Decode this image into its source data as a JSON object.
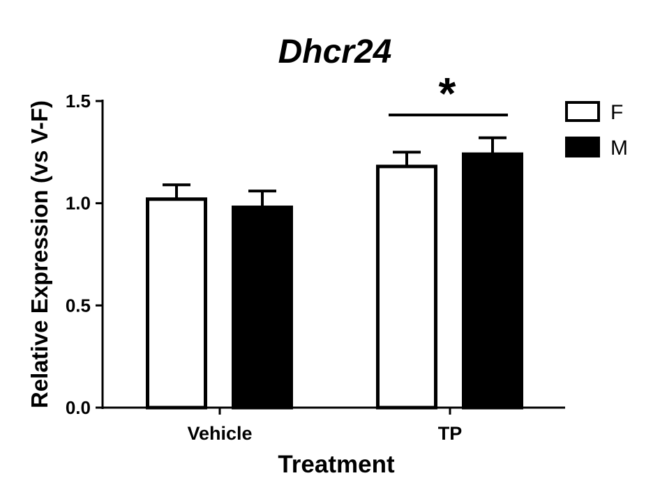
{
  "chart_data": {
    "type": "bar",
    "title": "Dhcr24",
    "xlabel": "Treatment",
    "ylabel": "Relative  Expression  (vs V-F)",
    "categories": [
      "Vehicle",
      "TP"
    ],
    "series": [
      {
        "name": "F",
        "values": [
          1.02,
          1.18
        ],
        "errors": [
          0.07,
          0.07
        ],
        "fill": "#ffffff"
      },
      {
        "name": "M",
        "values": [
          0.98,
          1.24
        ],
        "errors": [
          0.08,
          0.08
        ],
        "fill": "#000000"
      }
    ],
    "ylim": [
      0,
      1.5
    ],
    "yticks": [
      "0.0",
      "0.5",
      "1.0",
      "1.5"
    ],
    "legend_position": "top-right",
    "grid": false,
    "annotation": {
      "text": "*",
      "category": "TP"
    }
  }
}
